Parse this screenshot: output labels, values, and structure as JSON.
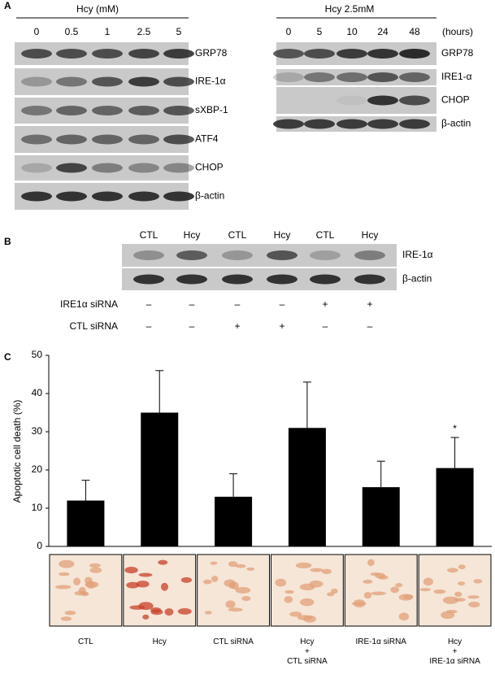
{
  "panel_a": {
    "label": "A",
    "left": {
      "title": "Hcy (mM)",
      "lanes": [
        "0",
        "0.5",
        "1",
        "2.5",
        "5"
      ],
      "rows": [
        "GRP78",
        "IRE-1α",
        "sXBP-1",
        "ATF4",
        "CHOP",
        "β-actin"
      ]
    },
    "right": {
      "title": "Hcy 2.5mM",
      "lanes": [
        "0",
        "5",
        "10",
        "24",
        "48"
      ],
      "unit": "(hours)",
      "rows": [
        "GRP78",
        "IRE1-α",
        "CHOP",
        "β-actin"
      ]
    }
  },
  "panel_b": {
    "label": "B",
    "lanes": [
      "CTL",
      "Hcy",
      "CTL",
      "Hcy",
      "CTL",
      "Hcy"
    ],
    "rows": [
      "IRE-1α",
      "β-actin"
    ],
    "conditions": [
      {
        "label": "IRE1α siRNA",
        "signs": [
          "–",
          "–",
          "–",
          "–",
          "+",
          "+"
        ]
      },
      {
        "label": "CTL  siRNA",
        "signs": [
          "–",
          "–",
          "+",
          "+",
          "–",
          "–"
        ]
      }
    ]
  },
  "chart_data": {
    "type": "bar",
    "label": "C",
    "y_label": "Apoptotic  cell death (%)",
    "categories": [
      "CTL",
      "Hcy",
      "CTL siRNA",
      "Hcy\n+\nCTL siRNA",
      "IRE-1α siRNA",
      "Hcy\n+\nIRE-1α siRNA"
    ],
    "values": [
      12,
      35,
      13,
      31,
      15.5,
      20.5
    ],
    "errors": [
      5.3,
      11,
      6,
      12,
      6.8,
      8
    ],
    "significance": [
      null,
      null,
      null,
      null,
      null,
      "*"
    ],
    "color": "#000000",
    "ylim": [
      0,
      50
    ],
    "yticks": [
      0,
      10,
      20,
      30,
      40,
      50
    ]
  }
}
